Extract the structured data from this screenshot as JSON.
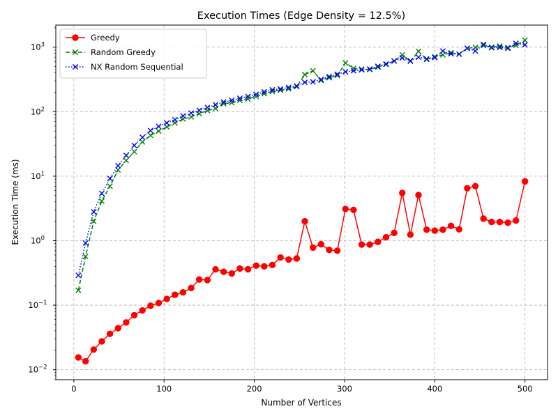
{
  "chart_data": {
    "type": "line",
    "title": "Execution Times (Edge Density = 12.5%)",
    "xlabel": "Number of Vertices",
    "ylabel": "Execution Time (ms)",
    "xlim": [
      -20,
      525
    ],
    "ylim": [
      0.007,
      2200
    ],
    "yscale": "log",
    "grid": true,
    "legend_position": "top-left",
    "x_ticks": [
      {
        "value": 0,
        "label": "0"
      },
      {
        "value": 100,
        "label": "100"
      },
      {
        "value": 200,
        "label": "200"
      },
      {
        "value": 300,
        "label": "300"
      },
      {
        "value": 400,
        "label": "400"
      },
      {
        "value": 500,
        "label": "500"
      }
    ],
    "y_ticks": [
      {
        "value": 0.01,
        "base": "10",
        "exp": "−2"
      },
      {
        "value": 0.1,
        "base": "10",
        "exp": "−1"
      },
      {
        "value": 1,
        "base": "10",
        "exp": "0"
      },
      {
        "value": 10,
        "base": "10",
        "exp": "1"
      },
      {
        "value": 100,
        "base": "10",
        "exp": "2"
      },
      {
        "value": 1000,
        "base": "10",
        "exp": "3"
      }
    ],
    "x": [
      5,
      13,
      22,
      31,
      40,
      49,
      58,
      67,
      76,
      85,
      94,
      103,
      112,
      121,
      130,
      139,
      148,
      157,
      166,
      175,
      184,
      193,
      202,
      211,
      220,
      229,
      238,
      247,
      256,
      265,
      274,
      283,
      292,
      301,
      310,
      319,
      328,
      337,
      346,
      355,
      364,
      373,
      382,
      391,
      400,
      409,
      418,
      427,
      436,
      445,
      454,
      463,
      472,
      481,
      490,
      500
    ],
    "series": [
      {
        "name": "Greedy",
        "color": "#ff0000",
        "linestyle": "solid",
        "marker": "circle",
        "values": [
          0.0155,
          0.0135,
          0.0205,
          0.0275,
          0.036,
          0.044,
          0.054,
          0.07,
          0.083,
          0.098,
          0.108,
          0.125,
          0.145,
          0.158,
          0.185,
          0.25,
          0.245,
          0.36,
          0.33,
          0.31,
          0.37,
          0.36,
          0.41,
          0.4,
          0.42,
          0.55,
          0.51,
          0.53,
          2.0,
          0.78,
          0.88,
          0.72,
          0.7,
          3.1,
          3.0,
          0.87,
          0.87,
          0.96,
          1.13,
          1.32,
          5.5,
          1.24,
          5.1,
          1.48,
          1.43,
          1.48,
          1.7,
          1.5,
          6.5,
          7.0,
          2.2,
          1.95,
          1.95,
          1.9,
          2.05,
          8.3
        ]
      },
      {
        "name": "Random Greedy",
        "color": "#008000",
        "linestyle": "dashed",
        "marker": "x",
        "values": [
          0.17,
          0.57,
          2.0,
          4.1,
          7.0,
          12.5,
          17.5,
          24,
          34,
          43,
          50,
          58,
          67,
          77,
          83,
          93,
          104,
          112,
          133,
          138,
          150,
          157,
          172,
          190,
          205,
          215,
          225,
          245,
          375,
          430,
          305,
          335,
          365,
          570,
          470,
          455,
          450,
          490,
          540,
          610,
          760,
          605,
          860,
          645,
          710,
          760,
          820,
          780,
          960,
          990,
          1060,
          1000,
          1040,
          990,
          1070,
          1280
        ]
      },
      {
        "name": "NX Random Sequential",
        "color": "#0000ff",
        "linestyle": "dotted",
        "marker": "x",
        "values": [
          0.29,
          0.92,
          2.8,
          5.4,
          9.2,
          14.5,
          21,
          30,
          40,
          51,
          59,
          67,
          75,
          86,
          95,
          105,
          116,
          128,
          141,
          150,
          161,
          172,
          186,
          203,
          218,
          225,
          238,
          250,
          285,
          290,
          315,
          350,
          380,
          415,
          430,
          445,
          458,
          505,
          550,
          610,
          680,
          615,
          700,
          660,
          690,
          870,
          790,
          780,
          960,
          870,
          1100,
          980,
          990,
          960,
          1150,
          1090
        ]
      }
    ]
  }
}
